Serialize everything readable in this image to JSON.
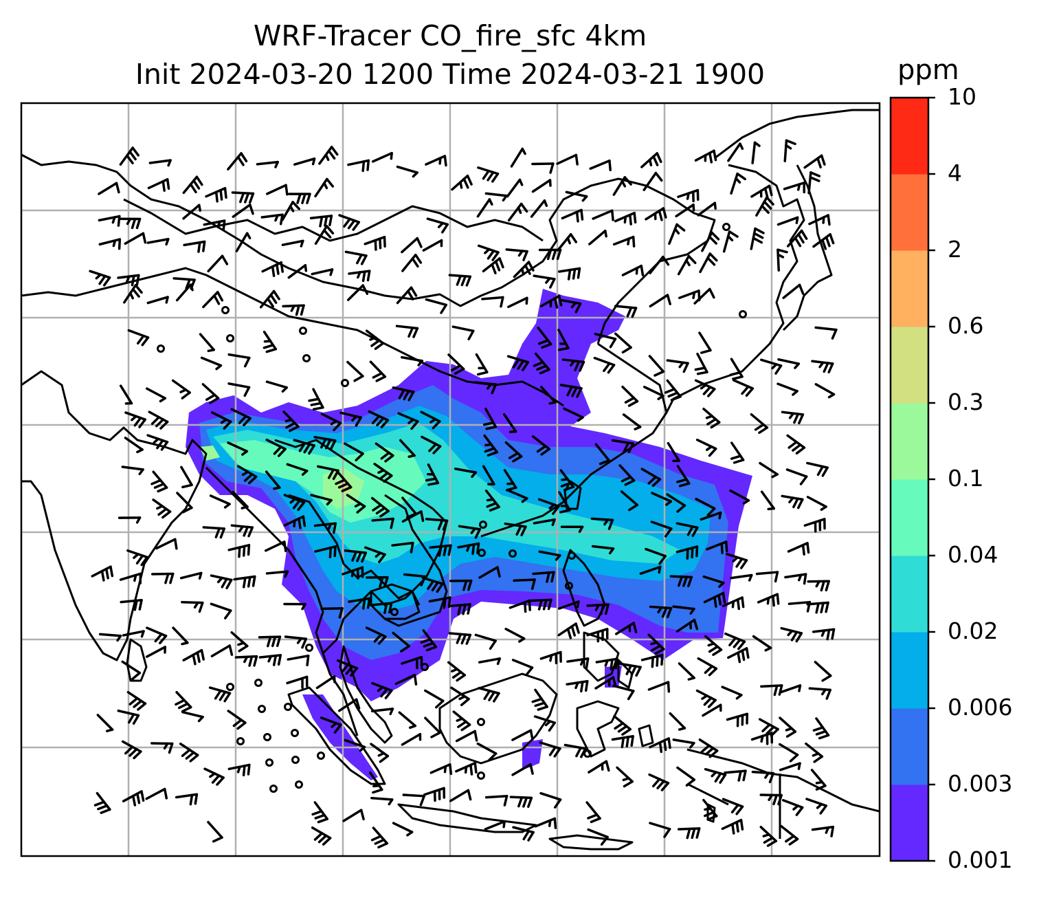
{
  "figure": {
    "title_line1": "WRF-Tracer CO_fire_sfc 4km",
    "title_line2": "Init 2024-03-20 1200 Time 2024-03-21 1900"
  },
  "colorbar": {
    "unit": "ppm",
    "levels": [
      "0.001",
      "0.003",
      "0.006",
      "0.02",
      "0.04",
      "0.1",
      "0.3",
      "0.6",
      "2",
      "4",
      "10"
    ],
    "colors": [
      "#6329ff",
      "#3372f0",
      "#03aeea",
      "#30dcd6",
      "#66fbbd",
      "#9cf99b",
      "#d2e081",
      "#ffb15f",
      "#ff703b",
      "#ff2a16"
    ]
  },
  "map": {
    "gridlines": true,
    "field": "CO_fire_sfc",
    "overlay": "wind barbs"
  }
}
